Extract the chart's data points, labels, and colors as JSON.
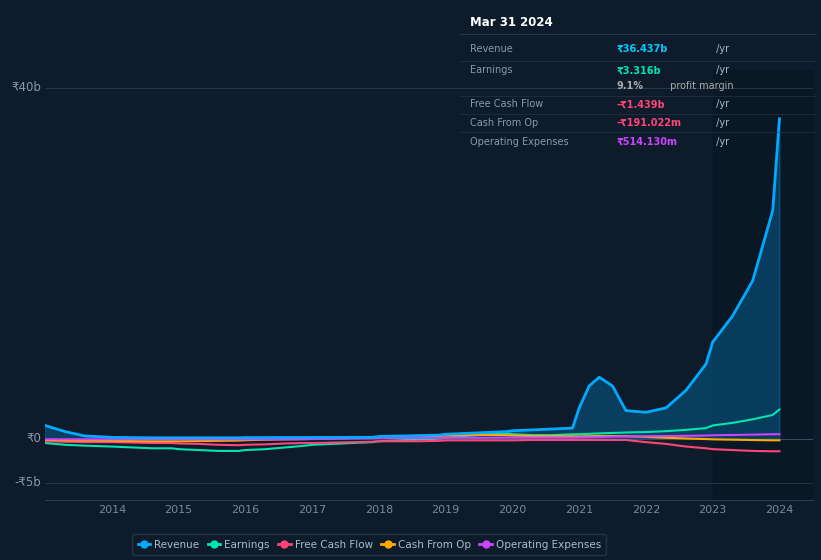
{
  "bg_color": "#0d1b2a",
  "plot_bg": "#0d1b2a",
  "ylabel_40b": "₹40b",
  "ylabel_0": "₹0",
  "ylabel_neg5b": "-₹5b",
  "xlabels": [
    "2014",
    "2015",
    "2016",
    "2017",
    "2018",
    "2019",
    "2020",
    "2021",
    "2022",
    "2023",
    "2024"
  ],
  "legend": [
    {
      "label": "Revenue",
      "color": "#00aaff"
    },
    {
      "label": "Earnings",
      "color": "#00e5b0"
    },
    {
      "label": "Free Cash Flow",
      "color": "#ff4477"
    },
    {
      "label": "Cash From Op",
      "color": "#ffaa00"
    },
    {
      "label": "Operating Expenses",
      "color": "#cc44ff"
    }
  ],
  "info_box": {
    "title": "Mar 31 2024",
    "rows": [
      {
        "label": "Revenue",
        "value": "₹36.437b /yr",
        "value_color": "#00ccff",
        "bold_value": true
      },
      {
        "label": "Earnings",
        "value": "₹3.316b /yr",
        "value_color": "#00e5b0",
        "bold_value": true
      },
      {
        "label": "",
        "value": "9.1% profit margin",
        "value_color": "#aaaaaa",
        "bold_part": "9.1%"
      },
      {
        "label": "Free Cash Flow",
        "value": "-₹1.439b /yr",
        "value_color": "#ff4477",
        "bold_value": true
      },
      {
        "label": "Cash From Op",
        "value": "-₹191.022m /yr",
        "value_color": "#ff4477",
        "bold_value": true
      },
      {
        "label": "Operating Expenses",
        "value": "₹514.130m /yr",
        "value_color": "#cc44ff",
        "bold_value": true
      }
    ]
  },
  "series": {
    "years": [
      2013.0,
      2013.3,
      2013.6,
      2014.0,
      2014.3,
      2014.6,
      2014.9,
      2015.0,
      2015.3,
      2015.6,
      2015.9,
      2016.0,
      2016.3,
      2016.6,
      2016.9,
      2017.0,
      2017.3,
      2017.6,
      2017.9,
      2018.0,
      2018.3,
      2018.6,
      2018.9,
      2019.0,
      2019.3,
      2019.6,
      2019.9,
      2020.0,
      2020.3,
      2020.6,
      2020.9,
      2021.0,
      2021.15,
      2021.3,
      2021.5,
      2021.7,
      2022.0,
      2022.3,
      2022.6,
      2022.9,
      2023.0,
      2023.3,
      2023.6,
      2023.9,
      2024.0
    ],
    "revenue": [
      1.5,
      0.8,
      0.3,
      0.15,
      0.12,
      0.1,
      0.1,
      0.1,
      0.1,
      0.1,
      0.1,
      0.12,
      0.12,
      0.13,
      0.13,
      0.14,
      0.14,
      0.15,
      0.15,
      0.25,
      0.3,
      0.35,
      0.4,
      0.5,
      0.6,
      0.7,
      0.8,
      0.9,
      1.0,
      1.1,
      1.2,
      3.5,
      6.0,
      7.0,
      6.0,
      3.2,
      3.0,
      3.5,
      5.5,
      8.5,
      11.0,
      14.0,
      18.0,
      26.0,
      36.437
    ],
    "earnings": [
      -0.5,
      -0.7,
      -0.8,
      -0.9,
      -1.0,
      -1.1,
      -1.1,
      -1.2,
      -1.3,
      -1.4,
      -1.4,
      -1.3,
      -1.2,
      -1.0,
      -0.8,
      -0.7,
      -0.6,
      -0.5,
      -0.4,
      -0.3,
      -0.2,
      -0.1,
      0.0,
      0.1,
      0.3,
      0.5,
      0.6,
      0.5,
      0.4,
      0.4,
      0.5,
      0.5,
      0.55,
      0.6,
      0.65,
      0.7,
      0.75,
      0.85,
      1.0,
      1.2,
      1.5,
      1.8,
      2.2,
      2.7,
      3.316
    ],
    "free_cash_flow": [
      -0.3,
      -0.35,
      -0.4,
      -0.4,
      -0.45,
      -0.5,
      -0.5,
      -0.55,
      -0.6,
      -0.7,
      -0.75,
      -0.7,
      -0.65,
      -0.55,
      -0.5,
      -0.5,
      -0.45,
      -0.4,
      -0.35,
      -0.3,
      -0.3,
      -0.3,
      -0.25,
      -0.2,
      -0.2,
      -0.2,
      -0.2,
      -0.2,
      -0.15,
      -0.15,
      -0.15,
      -0.15,
      -0.15,
      -0.15,
      -0.15,
      -0.15,
      -0.4,
      -0.6,
      -0.9,
      -1.1,
      -1.2,
      -1.3,
      -1.4,
      -1.44,
      -1.439
    ],
    "cash_from_op": [
      -0.15,
      -0.2,
      -0.22,
      -0.25,
      -0.28,
      -0.3,
      -0.3,
      -0.3,
      -0.28,
      -0.25,
      -0.22,
      -0.18,
      -0.12,
      -0.08,
      -0.04,
      0.0,
      0.04,
      0.08,
      0.12,
      0.15,
      0.2,
      0.25,
      0.3,
      0.35,
      0.4,
      0.42,
      0.4,
      0.35,
      0.3,
      0.28,
      0.28,
      0.25,
      0.28,
      0.3,
      0.3,
      0.28,
      0.2,
      0.1,
      0.02,
      -0.05,
      -0.08,
      -0.12,
      -0.16,
      -0.19,
      -0.191
    ],
    "operating_expenses": [
      -0.08,
      -0.08,
      -0.08,
      -0.08,
      -0.08,
      -0.08,
      -0.08,
      -0.08,
      -0.08,
      -0.08,
      -0.08,
      -0.08,
      -0.08,
      -0.08,
      -0.08,
      -0.05,
      -0.02,
      0.02,
      0.05,
      0.08,
      0.08,
      0.08,
      0.08,
      0.1,
      0.1,
      0.1,
      0.12,
      0.12,
      0.12,
      0.12,
      0.12,
      0.13,
      0.15,
      0.18,
      0.22,
      0.25,
      0.28,
      0.3,
      0.32,
      0.35,
      0.38,
      0.42,
      0.46,
      0.5,
      0.514
    ]
  }
}
